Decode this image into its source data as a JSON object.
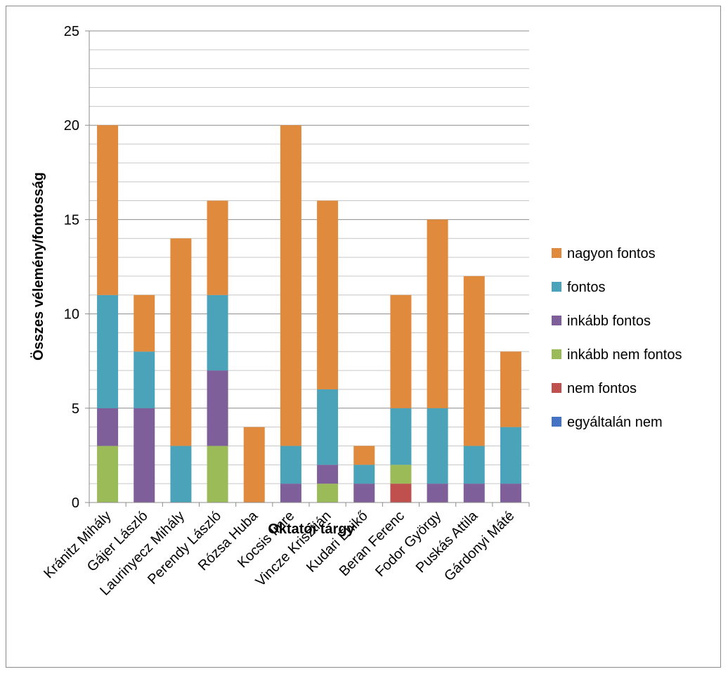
{
  "chart_data": {
    "type": "bar",
    "stacked": true,
    "title": "",
    "xlabel": "Oktatói tárgy",
    "ylabel": "Összes vélemény/fontosság",
    "ylim": [
      0,
      25
    ],
    "yticks": [
      0,
      5,
      10,
      15,
      20,
      25
    ],
    "minor_gridlines_step": 1,
    "grid": true,
    "legend_position": "right",
    "categories": [
      "Kránitz Mihály",
      "Gájer László",
      "Laurinyecz Mihály",
      "Perendy László",
      "Rózsa Huba",
      "Kocsis Imre",
      "Vincze Krisztián",
      "Kudari Enikő",
      "Beran Ferenc",
      "Fodor György",
      "Puskás Attila",
      "Gárdonyi Máté"
    ],
    "series": [
      {
        "name": "egyáltalán nem",
        "color": "#4472c4",
        "values": [
          0,
          0,
          0,
          0,
          0,
          0,
          0,
          0,
          0,
          0,
          0,
          0
        ]
      },
      {
        "name": "nem fontos",
        "color": "#c0504d",
        "values": [
          0,
          0,
          0,
          0,
          0,
          0,
          0,
          0,
          1,
          0,
          0,
          0
        ]
      },
      {
        "name": "inkább nem fontos",
        "color": "#9bbb59",
        "values": [
          3,
          0,
          0,
          3,
          0,
          0,
          1,
          0,
          1,
          0,
          0,
          0
        ]
      },
      {
        "name": "inkább fontos",
        "color": "#7f5f9a",
        "values": [
          2,
          5,
          0,
          4,
          0,
          1,
          1,
          1,
          0,
          1,
          1,
          1
        ]
      },
      {
        "name": "fontos",
        "color": "#4aa3b8",
        "values": [
          6,
          3,
          3,
          4,
          0,
          2,
          4,
          1,
          3,
          4,
          2,
          3
        ]
      },
      {
        "name": "nagyon fontos",
        "color": "#e08a3e",
        "values": [
          9,
          3,
          11,
          5,
          4,
          17,
          10,
          1,
          6,
          10,
          9,
          4
        ]
      }
    ],
    "legend_order": [
      "nagyon fontos",
      "fontos",
      "inkább fontos",
      "inkább nem fontos",
      "nem fontos",
      "egyáltalán nem"
    ]
  }
}
